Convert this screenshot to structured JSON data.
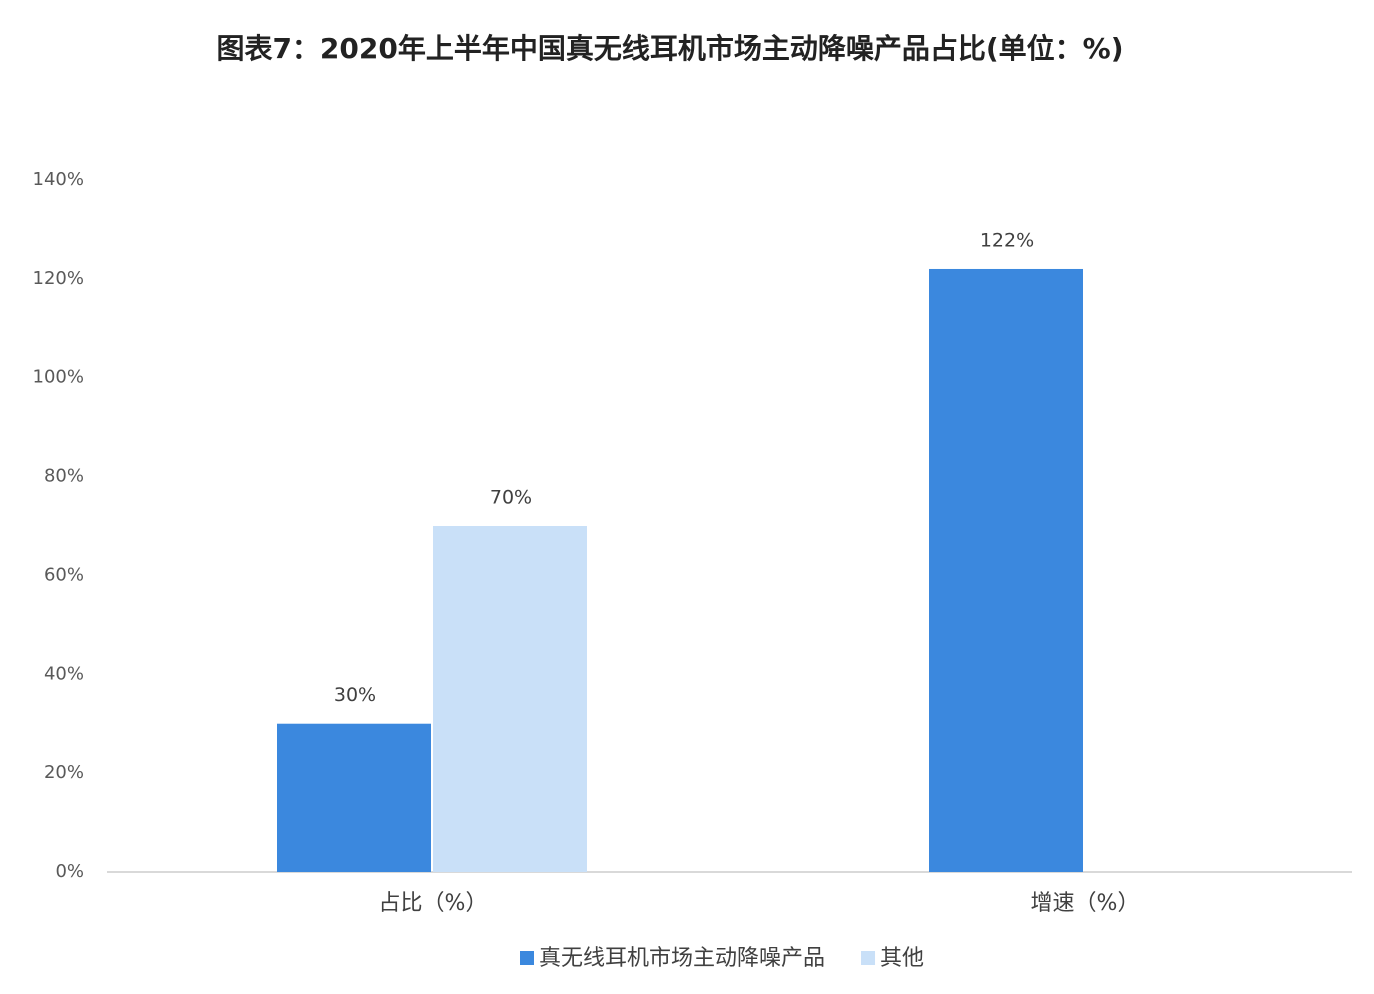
{
  "chart_data": {
    "type": "bar",
    "title": "图表7：2020年上半年中国真无线耳机市场主动降噪产品占比(单位：%)",
    "categories": [
      "占比（%）",
      "增速（%）"
    ],
    "series": [
      {
        "name": "真无线耳机市场主动降噪产品",
        "color": "#3b88de",
        "values": [
          30,
          122
        ],
        "value_labels": [
          "30%",
          "122%"
        ]
      },
      {
        "name": "其他",
        "color": "#c9e0f8",
        "values": [
          70,
          null
        ],
        "value_labels": [
          "70%",
          null
        ]
      }
    ],
    "ylim": [
      0,
      140
    ],
    "yticks": [
      {
        "value": 0,
        "label": "0%"
      },
      {
        "value": 20,
        "label": "20%"
      },
      {
        "value": 40,
        "label": "40%"
      },
      {
        "value": 60,
        "label": "60%"
      },
      {
        "value": 80,
        "label": "80%"
      },
      {
        "value": 100,
        "label": "100%"
      },
      {
        "value": 120,
        "label": "120%"
      },
      {
        "value": 140,
        "label": "140%"
      }
    ],
    "grid": false,
    "legend": "bottom"
  }
}
